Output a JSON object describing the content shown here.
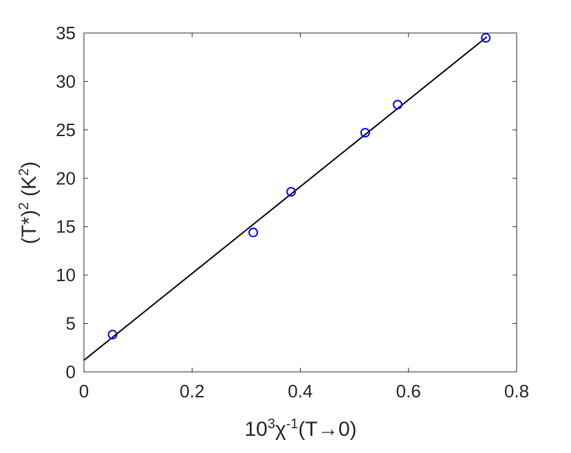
{
  "chart_data": {
    "type": "scatter",
    "xlabel": [
      {
        "text": "10"
      },
      {
        "text": "3",
        "sup": true
      },
      {
        "text": "χ"
      },
      {
        "text": "-1",
        "sup": true
      },
      {
        "text": "(T→0)"
      }
    ],
    "ylabel": [
      {
        "text": "(T*)"
      },
      {
        "text": "2",
        "sup": true
      },
      {
        "text": " (K"
      },
      {
        "text": "2",
        "sup": true
      },
      {
        "text": ")"
      }
    ],
    "series": [
      {
        "type": "scatter",
        "color": "#0000ff",
        "x": [
          0.053,
          0.313,
          0.383,
          0.52,
          0.58,
          0.743
        ],
        "values": [
          3.85,
          14.4,
          18.6,
          24.7,
          27.6,
          34.5
        ]
      },
      {
        "type": "line",
        "color": "#000000",
        "x": [
          0,
          0.745
        ],
        "values": [
          1.2,
          34.6
        ]
      }
    ],
    "xlim": [
      0,
      0.8
    ],
    "xticks": [
      0,
      0.2,
      0.4,
      0.6,
      0.8
    ],
    "ylim": [
      0,
      35
    ],
    "yticks": [
      0,
      5,
      10,
      15,
      20,
      25,
      30,
      35
    ]
  }
}
